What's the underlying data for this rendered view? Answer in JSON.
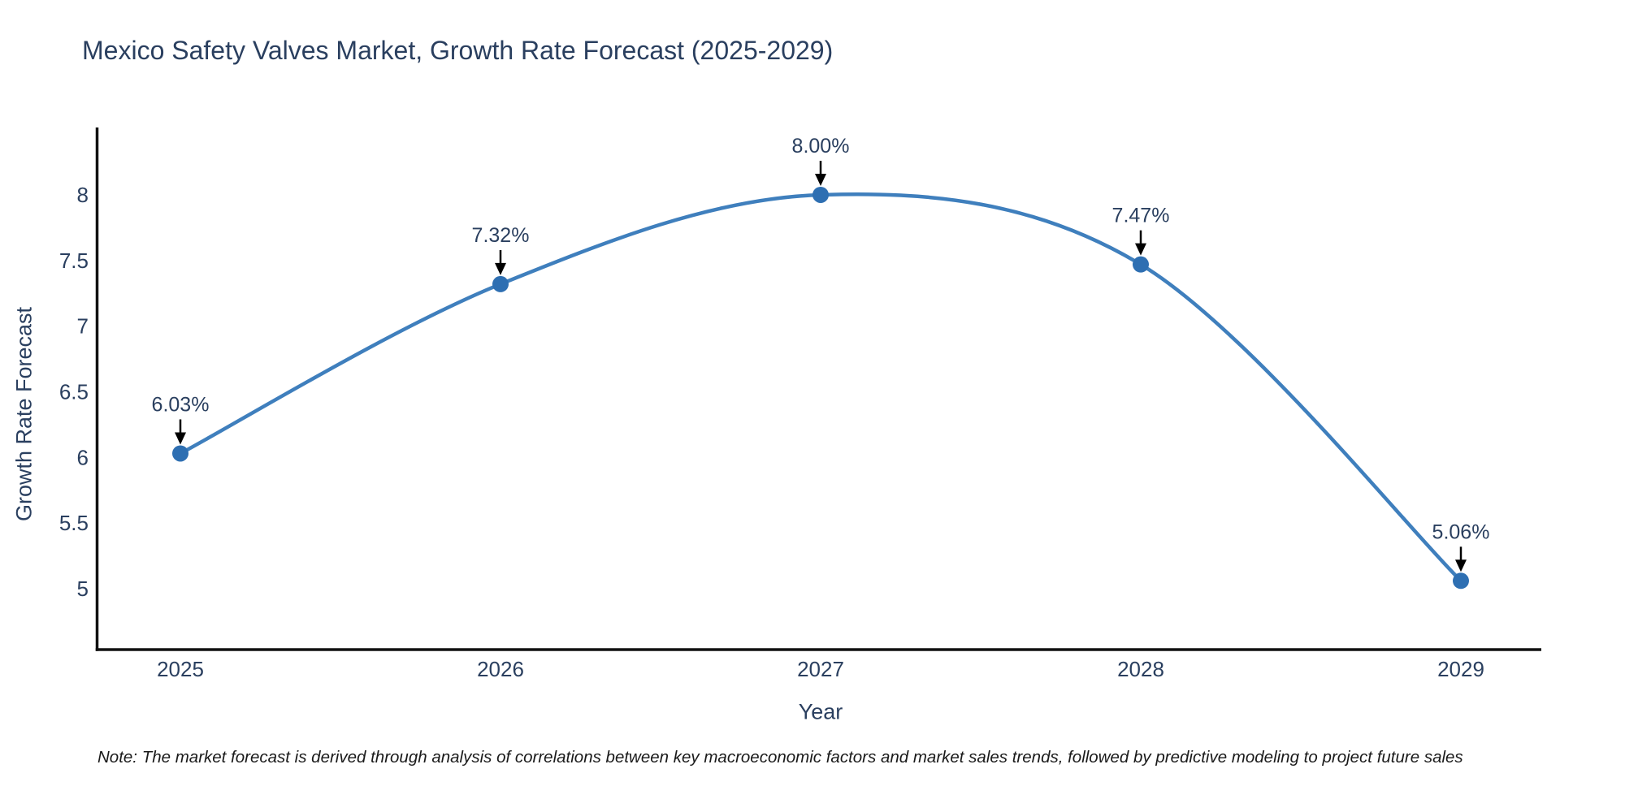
{
  "title": "Mexico Safety Valves Market, Growth Rate Forecast (2025-2029)",
  "note": "Note: The market forecast is derived through analysis of correlations between key macroeconomic factors and market sales trends, followed by predictive modeling to project future sales",
  "chart_data": {
    "type": "line",
    "curve": "spline",
    "title": "Mexico Safety Valves Market, Growth Rate Forecast (2025-2029)",
    "xlabel": "Year",
    "ylabel": "Growth Rate Forecast",
    "x": [
      "2025",
      "2026",
      "2027",
      "2028",
      "2029"
    ],
    "series": [
      {
        "name": "Growth Rate Forecast",
        "values": [
          6.03,
          7.32,
          8.0,
          7.47,
          5.06
        ],
        "point_labels": [
          "6.03%",
          "7.32%",
          "8.00%",
          "7.47%",
          "5.06%"
        ]
      }
    ],
    "yticks": [
      5,
      5.5,
      6,
      6.5,
      7,
      7.5,
      8
    ],
    "ylim": [
      4.54,
      8.5
    ],
    "grid": false,
    "legend": "none",
    "annotation_style": "value label with black down-arrow above each data point",
    "colors": {
      "line": "#3f7fbd",
      "marker": "#2e6fb2",
      "text": "#2a3f5f",
      "axis": "#111111",
      "arrow": "#000000"
    }
  }
}
